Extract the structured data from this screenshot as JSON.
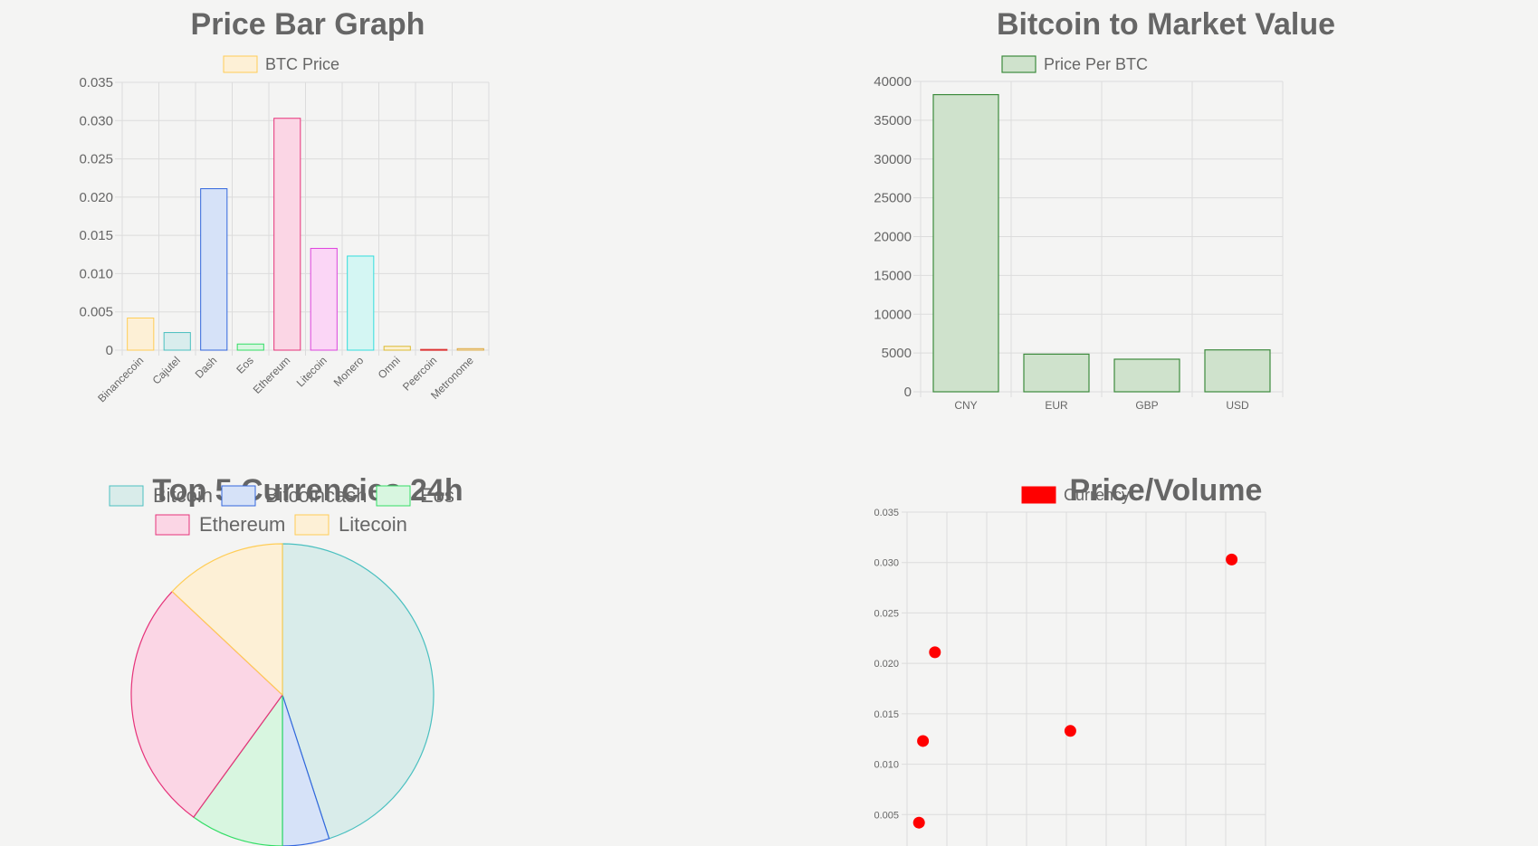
{
  "chart_data": [
    {
      "type": "bar",
      "title": "Price Bar Graph",
      "legend": "top",
      "series": [
        {
          "name": "BTC Price",
          "values": [
            0.0042,
            0.0023,
            0.0211,
            0.0008,
            0.0303,
            0.0133,
            0.0123,
            0.0005,
            0.0001,
            0.0002
          ]
        }
      ],
      "categories": [
        "Binancecoin",
        "Cajutel",
        "Dash",
        "Eos",
        "Ethereum",
        "Litecoin",
        "Monero",
        "Omni",
        "Peercoin",
        "Metronome"
      ],
      "colors": [
        "#ffcd56",
        "#4bc0c0",
        "#3366dd",
        "#33dd66",
        "#e6337a",
        "#dd44dd",
        "#33dddd",
        "#ddbb33",
        "#dd3333",
        "#ddaa44"
      ],
      "fills": [
        "#fdf0d6",
        "#d9eded",
        "#d6e2f8",
        "#d8f6e0",
        "#fbd6e5",
        "#fbd6f6",
        "#d4f6f3",
        "#fbf1d4",
        "#f8d8d8",
        "#f8ecd6"
      ],
      "yticks": [
        "0",
        "0.005",
        "0.010",
        "0.015",
        "0.020",
        "0.025",
        "0.030",
        "0.035"
      ],
      "ylim": [
        0,
        0.035
      ],
      "grid": true
    },
    {
      "type": "bar",
      "title": "Bitcoin to Market Value",
      "legend": "top",
      "series": [
        {
          "name": "Price Per BTC",
          "values": [
            38300,
            4850,
            4200,
            5400
          ]
        }
      ],
      "categories": [
        "CNY",
        "EUR",
        "GBP",
        "USD"
      ],
      "color": "#3d8b3d",
      "fill": "#cfe2cc",
      "yticks": [
        "0",
        "5000",
        "10000",
        "15000",
        "20000",
        "25000",
        "30000",
        "35000",
        "40000"
      ],
      "ylim": [
        0,
        40000
      ],
      "grid": true
    },
    {
      "type": "pie",
      "title": "Top 5 Currencies 24h",
      "legend": "top",
      "categories": [
        "Bitcoin",
        "Bitcoincash",
        "Eos",
        "Ethereum",
        "Litecoin"
      ],
      "values": [
        45,
        5,
        10,
        27,
        13
      ],
      "colors": [
        "#4bc0c0",
        "#3366dd",
        "#33dd66",
        "#e6337a",
        "#ffcd56"
      ],
      "fills": [
        "#d9ecea",
        "#d6e2f8",
        "#d8f6e0",
        "#fbd6e5",
        "#fdf0d6"
      ]
    },
    {
      "type": "scatter",
      "title": "Price/Volume",
      "legend": "top",
      "series": [
        {
          "name": "Currency",
          "color": "#ff0000",
          "points": [
            {
              "x": 8,
              "y": 0.0123
            },
            {
              "x": 14,
              "y": 0.0211
            },
            {
              "x": 82,
              "y": 0.0133
            },
            {
              "x": 163,
              "y": 0.0303
            },
            {
              "x": 6,
              "y": 0.0042
            }
          ]
        }
      ],
      "xlim": [
        0,
        180
      ],
      "yticks": [
        "0.005",
        "0.010",
        "0.015",
        "0.020",
        "0.025",
        "0.030",
        "0.035"
      ],
      "ylim": [
        0,
        0.035
      ],
      "grid": true
    }
  ]
}
